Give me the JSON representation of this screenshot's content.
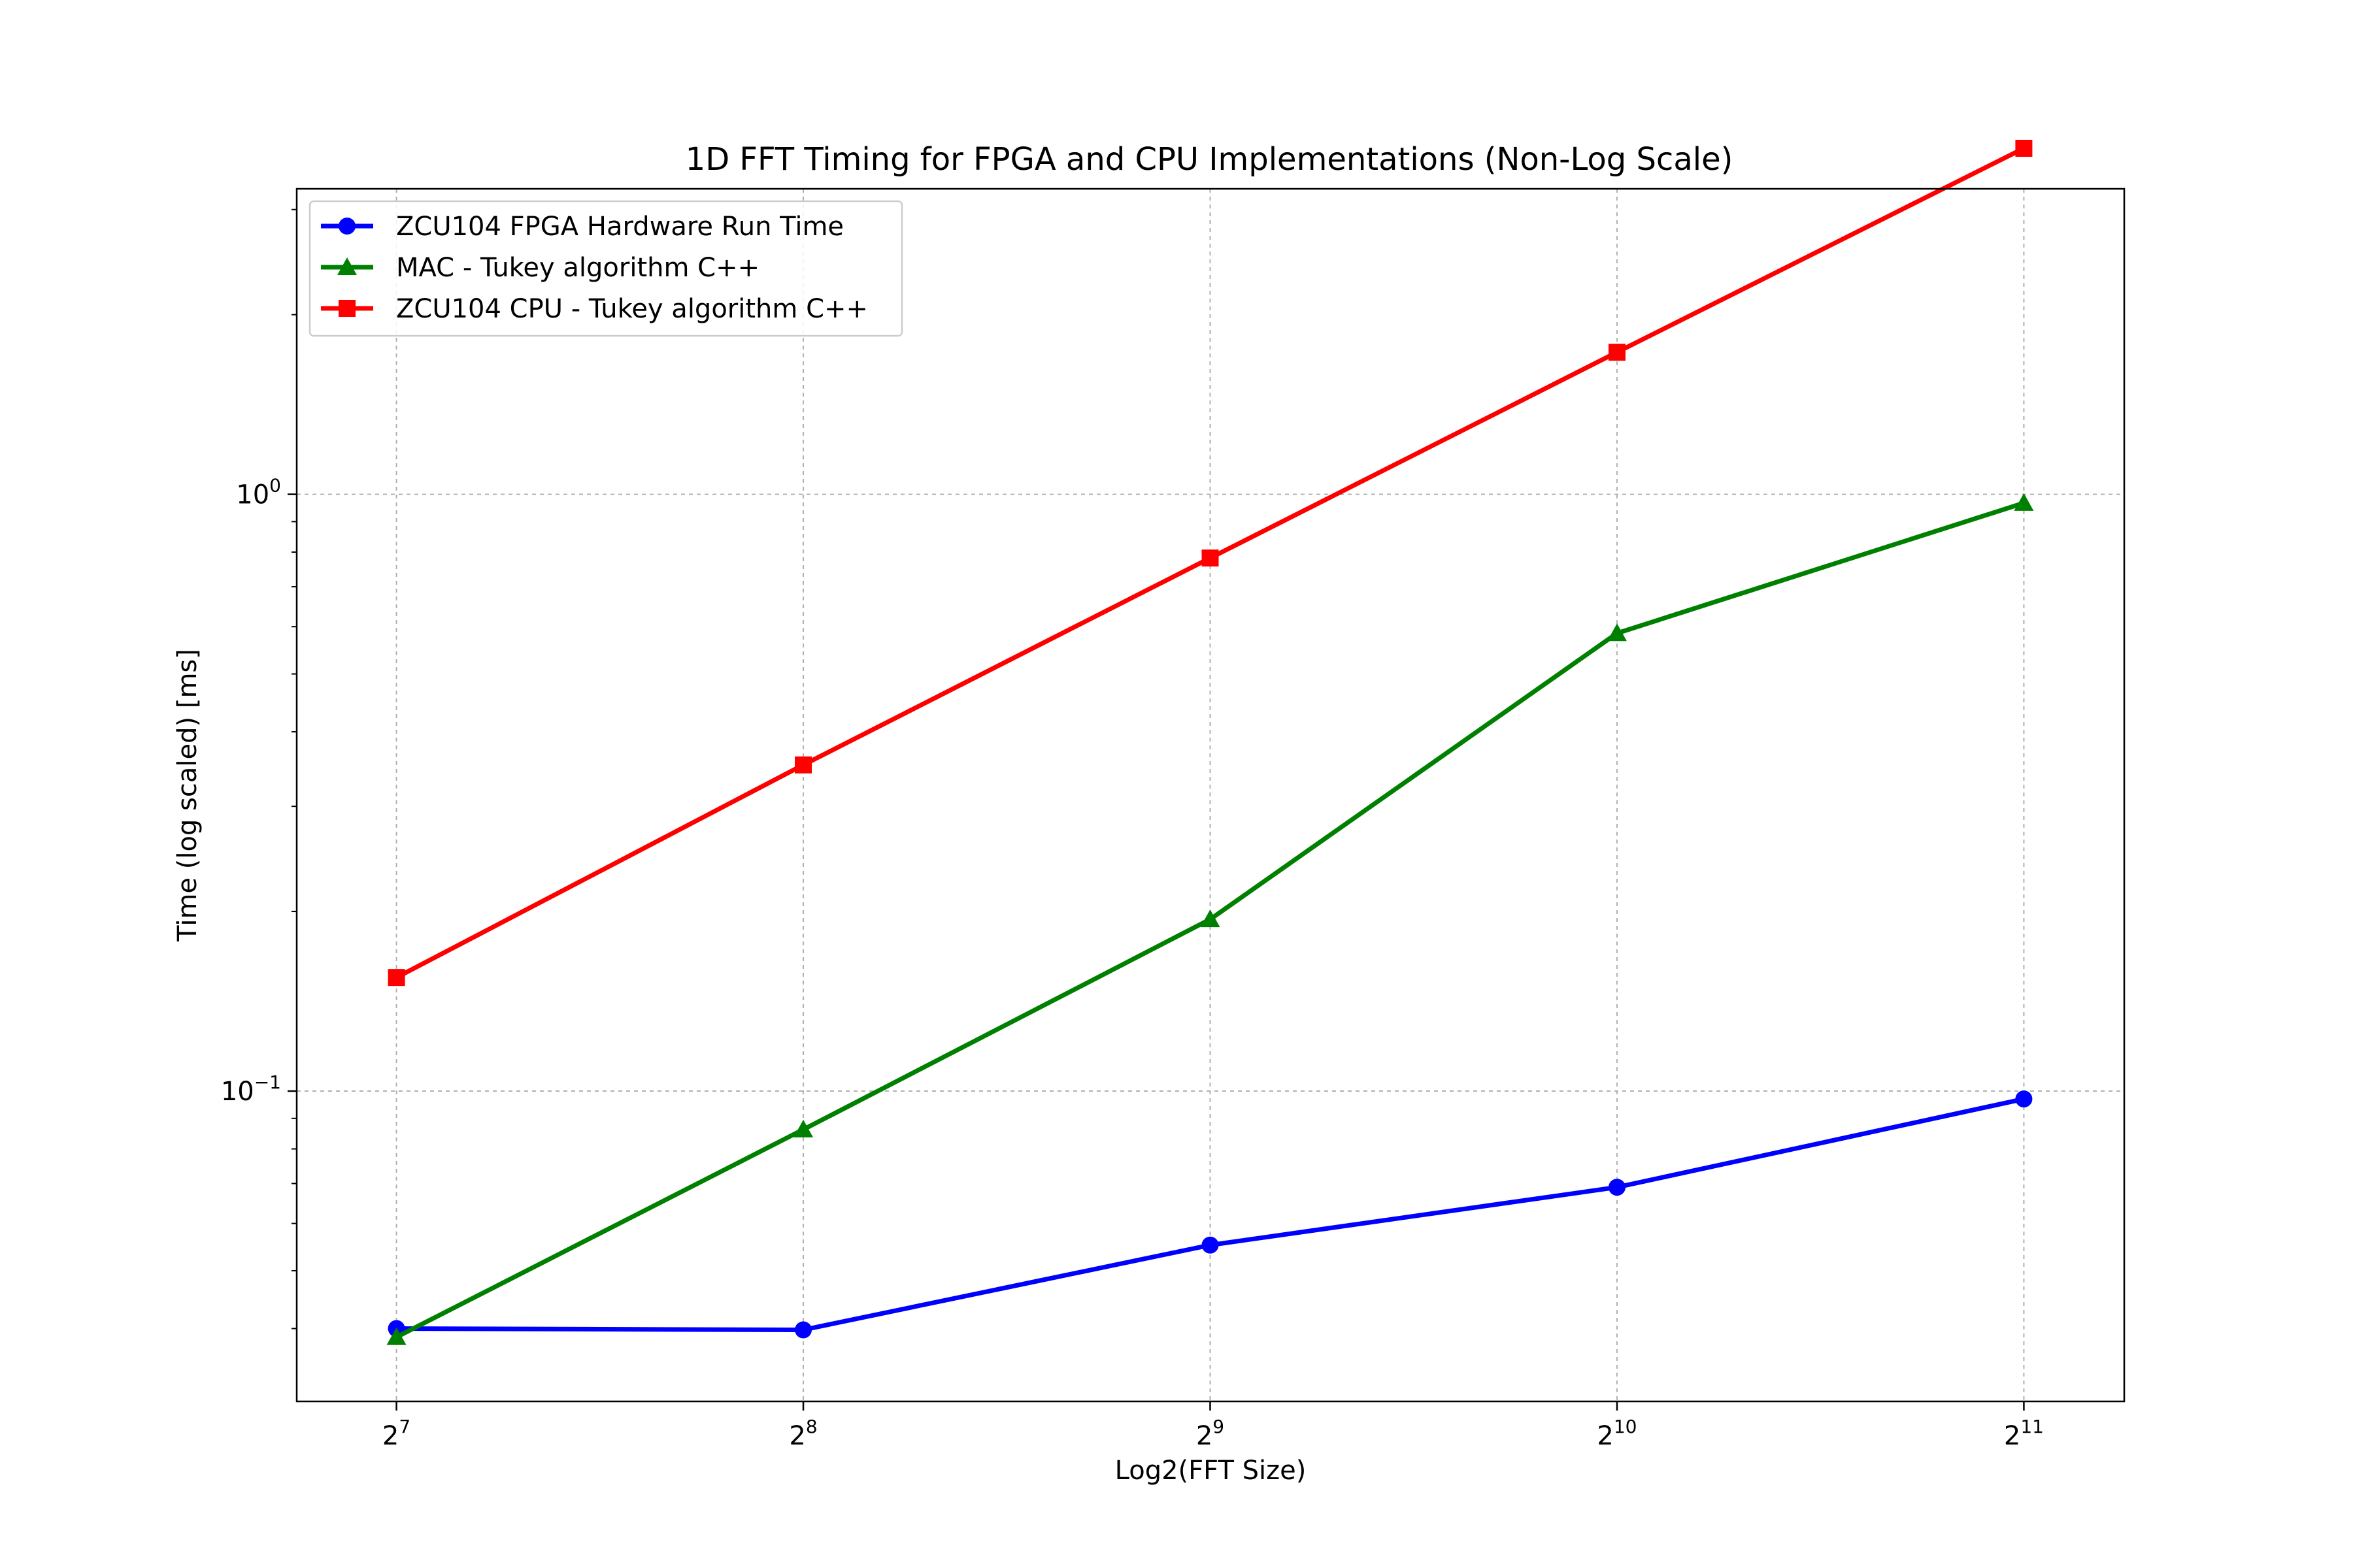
{
  "chart_data": {
    "type": "line",
    "title": "1D FFT Timing for FPGA and CPU Implementations (Non-Log Scale)",
    "xlabel": "Log2(FFT Size)",
    "ylabel": "Time (log scaled) [ms]",
    "x_scale": "log2",
    "y_scale": "log10",
    "x": [
      128,
      256,
      512,
      1024,
      2048
    ],
    "x_tick_labels": [
      {
        "base": "2",
        "exp": "7"
      },
      {
        "base": "2",
        "exp": "8"
      },
      {
        "base": "2",
        "exp": "9"
      },
      {
        "base": "2",
        "exp": "10"
      },
      {
        "base": "2",
        "exp": "11"
      }
    ],
    "y_tick_labels": [
      {
        "value": 0.1,
        "base": "10",
        "exp": "−1"
      },
      {
        "value": 1,
        "base": "10",
        "exp": "0"
      }
    ],
    "xlim": [
      108,
      2430
    ],
    "ylim": [
      0.0302,
      3.25
    ],
    "grid": true,
    "legend_position": "top-left",
    "series": [
      {
        "name": "ZCU104 FPGA Hardware Run Time",
        "color": "#0000ff",
        "marker": "circle",
        "values": [
          0.04,
          0.0398,
          0.0552,
          0.069,
          0.097
        ]
      },
      {
        "name": "MAC - Tukey algorithm C++",
        "color": "#008000",
        "marker": "triangle",
        "values": [
          0.0387,
          0.0862,
          0.194,
          0.585,
          0.967
        ]
      },
      {
        "name": "ZCU104 CPU - Tukey algorithm C++",
        "color": "#ff0000",
        "marker": "square",
        "values": [
          0.155,
          0.352,
          0.782,
          1.73,
          3.8
        ]
      }
    ]
  }
}
